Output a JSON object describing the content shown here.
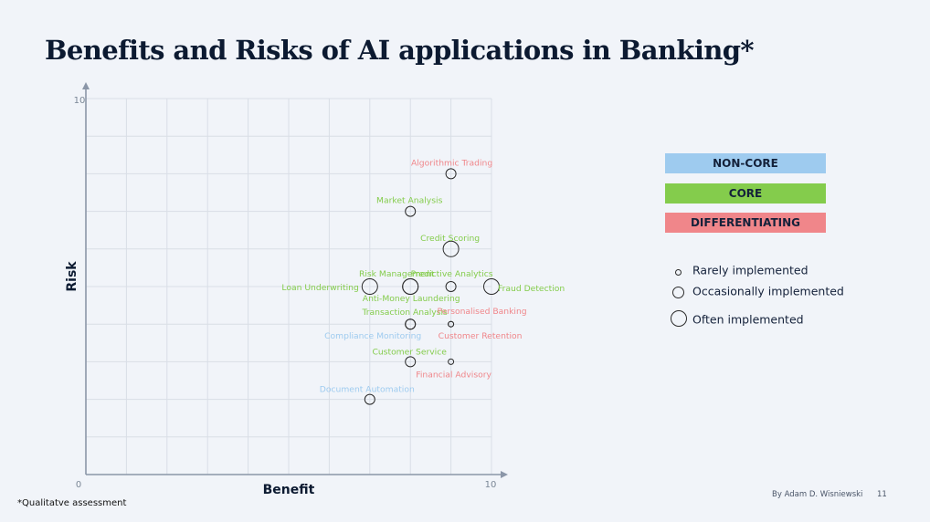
{
  "slide": {
    "title": "Benefits and Risks of AI applications in Banking*",
    "footnote": "*Qualitatve assessment",
    "author": "By Adam D. Wisniewski",
    "page_number": "11"
  },
  "legend": {
    "categories": [
      {
        "label": "NON-CORE",
        "color": "#9ecbef"
      },
      {
        "label": "CORE",
        "color": "#84cc4c"
      },
      {
        "label": "DIFFERENTIATING",
        "color": "#f0868a"
      }
    ],
    "sizes": [
      {
        "label": "Rarely implemented"
      },
      {
        "label": "Occasionally implemented"
      },
      {
        "label": "Often implemented"
      }
    ]
  },
  "colors": {
    "non_core": "#9ecbef",
    "core": "#84cc4c",
    "differentiating": "#f0868a",
    "grid": "#d9dee6",
    "axis": "#8b96a8",
    "marker": "#2b2b2b"
  },
  "chart_data": {
    "type": "scatter",
    "title": "Benefits and Risks of AI applications in Banking*",
    "xlabel": "Benefit",
    "ylabel": "Risk",
    "xlim": [
      0,
      10
    ],
    "ylim": [
      0,
      10
    ],
    "x_tick_labels": [
      "0",
      "10"
    ],
    "y_tick_labels": [
      "10"
    ],
    "grid": true,
    "legend_position": "right",
    "points": [
      {
        "label": "Algorithmic Trading",
        "x": 9,
        "y": 8,
        "category": "differentiating",
        "implementation": "occasionally"
      },
      {
        "label": "Market Analysis",
        "x": 8,
        "y": 7,
        "category": "core",
        "implementation": "occasionally"
      },
      {
        "label": "Credit Scoring",
        "x": 9,
        "y": 6,
        "category": "core",
        "implementation": "often"
      },
      {
        "label": "Loan Underwriting",
        "x": 7,
        "y": 5,
        "category": "core",
        "implementation": "often"
      },
      {
        "label": "Risk Management",
        "x": 8,
        "y": 5,
        "category": "core",
        "implementation": "often"
      },
      {
        "label": "Anti-Money Laundering",
        "x": 8,
        "y": 5,
        "category": "core",
        "implementation": "often"
      },
      {
        "label": "Predictive Analytics",
        "x": 9,
        "y": 5,
        "category": "core",
        "implementation": "occasionally"
      },
      {
        "label": "Fraud Detection",
        "x": 10,
        "y": 5,
        "category": "core",
        "implementation": "often"
      },
      {
        "label": "Transaction Analysis",
        "x": 8,
        "y": 4,
        "category": "core",
        "implementation": "occasionally"
      },
      {
        "label": "Compliance Monitoring",
        "x": 8,
        "y": 4,
        "category": "non_core",
        "implementation": "occasionally"
      },
      {
        "label": "Personalised Banking",
        "x": 9,
        "y": 4,
        "category": "differentiating",
        "implementation": "rarely"
      },
      {
        "label": "Customer Retention",
        "x": 9,
        "y": 4,
        "category": "differentiating",
        "implementation": "rarely"
      },
      {
        "label": "Customer Service",
        "x": 8,
        "y": 3,
        "category": "core",
        "implementation": "occasionally"
      },
      {
        "label": "Financial Advisory",
        "x": 9,
        "y": 3,
        "category": "differentiating",
        "implementation": "rarely"
      },
      {
        "label": "Document Automation",
        "x": 7,
        "y": 2,
        "category": "non_core",
        "implementation": "occasionally"
      }
    ]
  }
}
